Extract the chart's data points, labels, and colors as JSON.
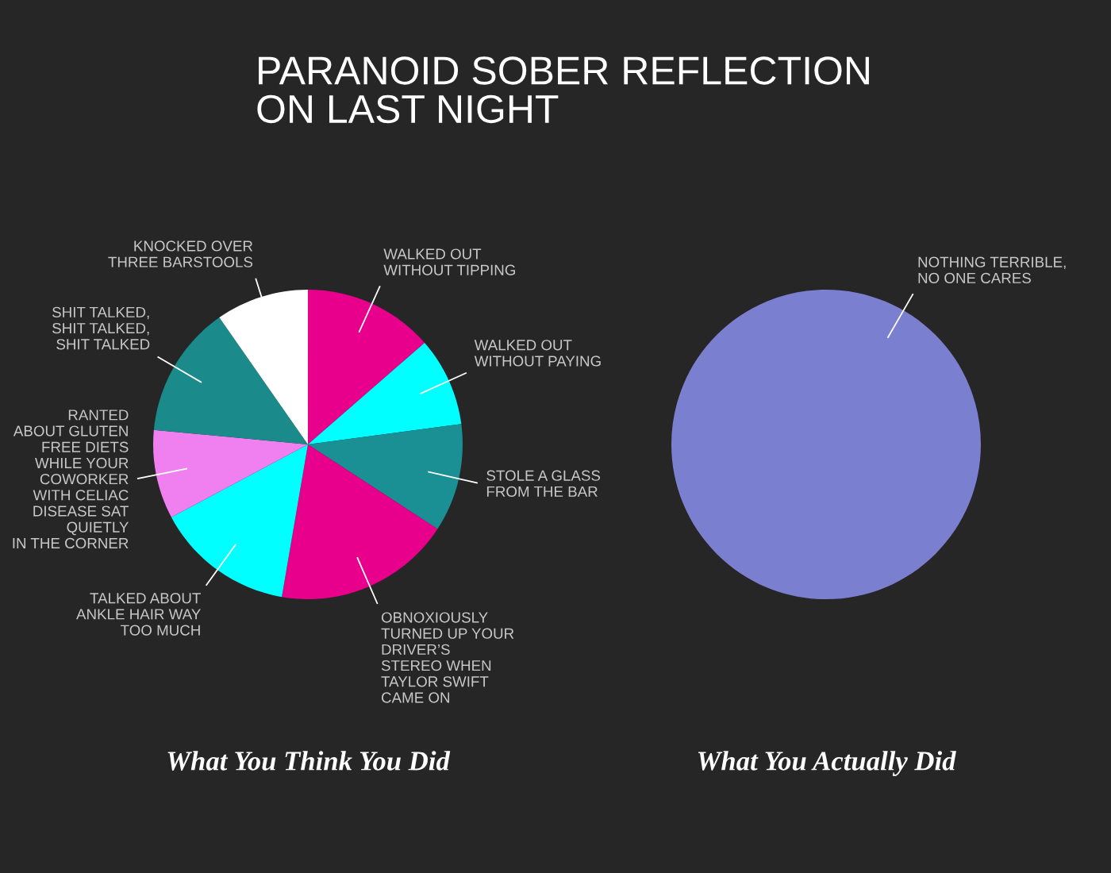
{
  "chart_data": [
    {
      "type": "pie",
      "title": "PARANOID SOBER REFLECTION\nON LAST NIGHT",
      "xlabel": "What You Think You Did",
      "categories": [
        "WALKED OUT\nWITHOUT TIPPING",
        "WALKED OUT\nWITHOUT PAYING",
        "STOLE A GLASS\nFROM THE BAR",
        "OBNOXIOUSLY\nTURNED UP YOUR\nDRIVER’S\nSTEREO WHEN\nTAYLOR SWIFT\nCAME ON",
        "TALKED ABOUT\nANKLE HAIR WAY\nTOO MUCH",
        "RANTED\nABOUT GLUTEN\nFREE DIETS\nWHILE YOUR\nCOWORKER\nWITH CELIAC\nDISEASE SAT\nQUIETLY\nIN THE CORNER",
        "SHIT TALKED,\nSHIT TALKED,\nSHIT TALKED",
        "KNOCKED OVER\nTHREE BARSTOOLS"
      ],
      "values": [
        13.6,
        9.3,
        11.3,
        18.5,
        14.5,
        9.3,
        13.8,
        9.7
      ],
      "colors": [
        "#e8008c",
        "#00ffff",
        "#1a8f94",
        "#e8008c",
        "#00ffff",
        "#f080f0",
        "#1a8a8a",
        "#ffffff"
      ]
    },
    {
      "type": "pie",
      "xlabel": "What You Actually Did",
      "categories": [
        "NOTHING TERRIBLE,\nNO ONE CARES"
      ],
      "values": [
        100
      ],
      "colors": [
        "#7b7fcf"
      ]
    }
  ]
}
